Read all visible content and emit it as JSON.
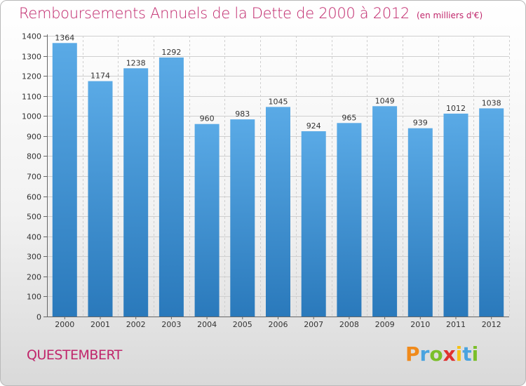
{
  "header": {
    "title": "Remboursements Annuels de la Dette de 2000 à 2012",
    "unit": "(en milliers d'€)"
  },
  "footer": {
    "city": "QUESTEMBERT",
    "logo": [
      "P",
      "r",
      "o",
      "x",
      "i",
      "t",
      "i"
    ]
  },
  "colors": {
    "title": "#c0266b",
    "bar_light": "#5aaae6",
    "bar_dark": "#2a79bb"
  },
  "chart_data": {
    "type": "bar",
    "categories": [
      "2000",
      "2001",
      "2002",
      "2003",
      "2004",
      "2005",
      "2006",
      "2007",
      "2008",
      "2009",
      "2010",
      "2011",
      "2012"
    ],
    "values": [
      1364,
      1174,
      1238,
      1292,
      960,
      983,
      1045,
      924,
      965,
      1049,
      939,
      1012,
      1038
    ],
    "ylim": [
      0,
      1400
    ],
    "yticks": [
      0,
      100,
      200,
      300,
      400,
      500,
      600,
      700,
      800,
      900,
      1000,
      1100,
      1200,
      1300,
      1400
    ],
    "grid": true,
    "data_labels": true
  }
}
